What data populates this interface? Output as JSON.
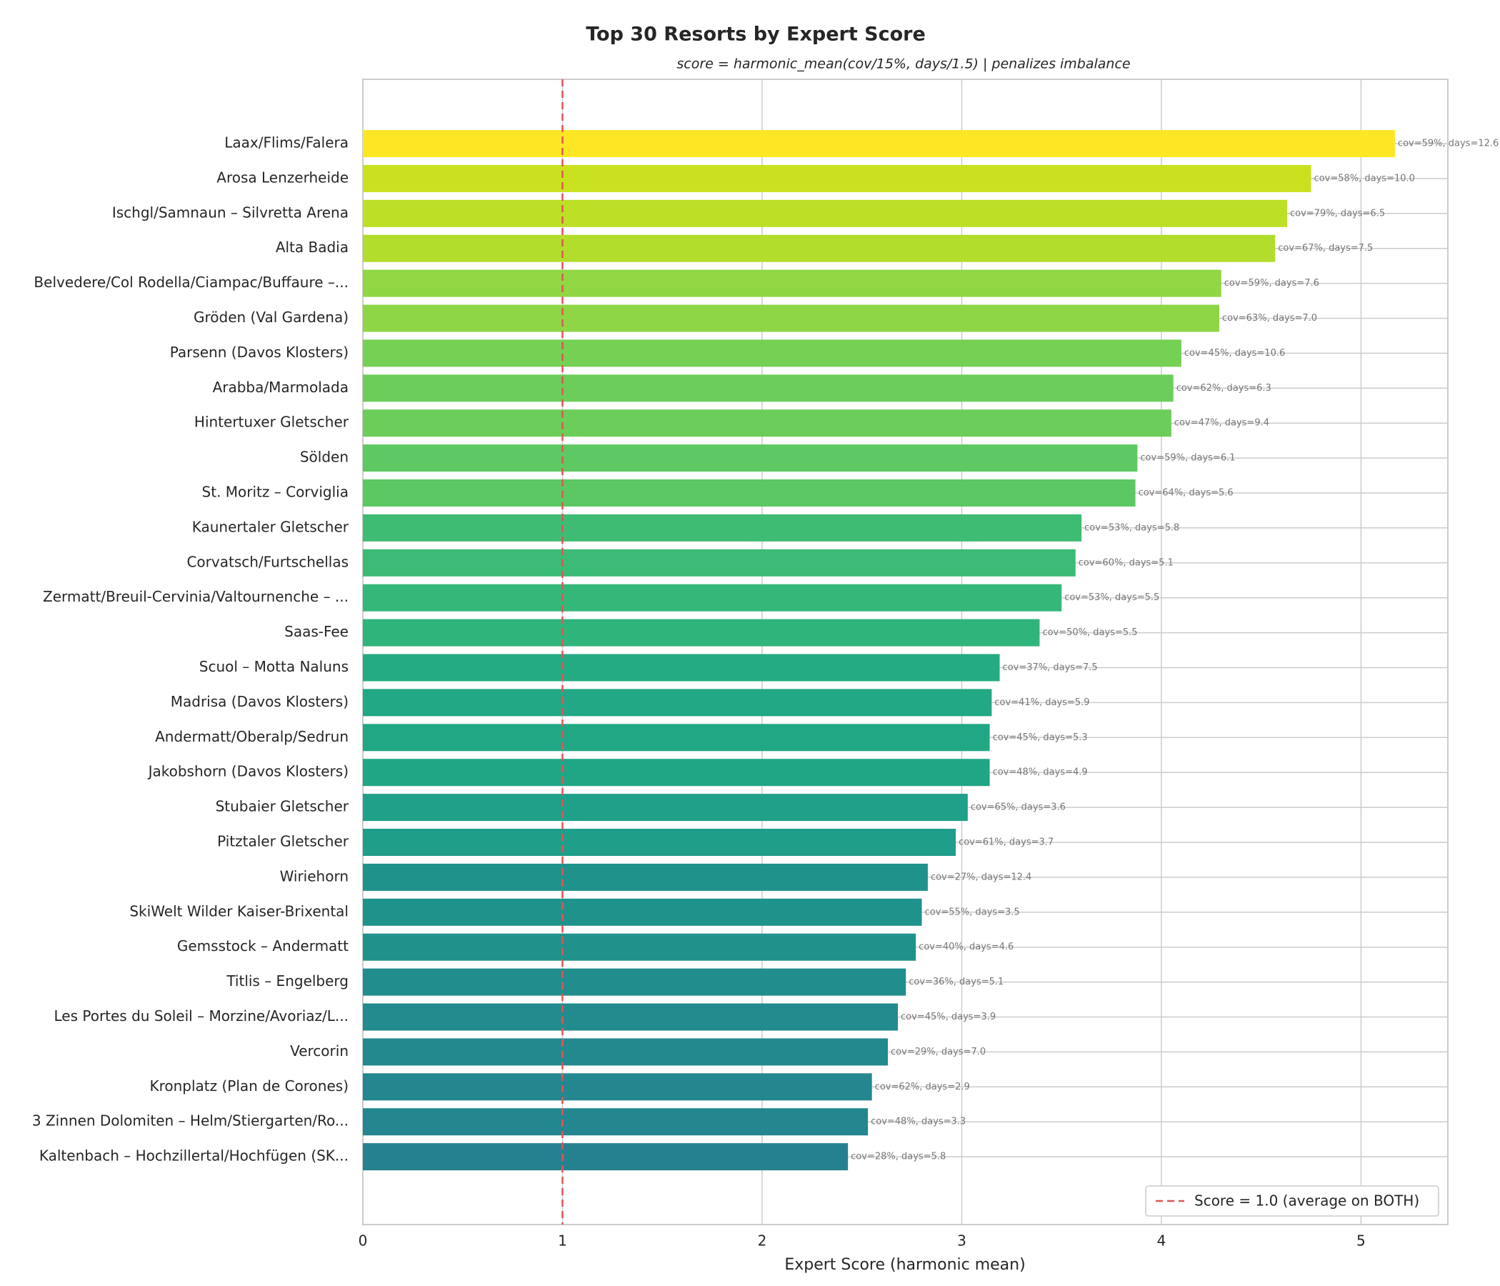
{
  "chart_data": {
    "type": "barh",
    "title": "Top 30 Resorts by Expert Score",
    "subtitle": "score = harmonic_mean(cov/15%, days/1.5) | penalizes imbalance",
    "x_label": "Expert Score (harmonic mean)",
    "categories": [
      "Laax/Flims/Falera",
      "Arosa Lenzerheide",
      "Ischgl/Samnaun – Silvretta Arena",
      "Alta Badia",
      "Belvedere/Col Rodella/Ciampac/Buffaure –...",
      "Gröden (Val Gardena)",
      "Parsenn (Davos Klosters)",
      "Arabba/Marmolada",
      "Hintertuxer Gletscher",
      "Sölden",
      "St. Moritz – Corviglia",
      "Kaunertaler Gletscher",
      "Corvatsch/Furtschellas",
      "Zermatt/Breuil-Cervinia/Valtournenche – ...",
      "Saas-Fee",
      "Scuol – Motta Naluns",
      "Madrisa (Davos Klosters)",
      "Andermatt/Oberalp/Sedrun",
      "Jakobshorn (Davos Klosters)",
      "Stubaier Gletscher",
      "Pitztaler Gletscher",
      "Wiriehorn",
      "SkiWelt Wilder Kaiser-Brixental",
      "Gemsstock – Andermatt",
      "Titlis – Engelberg",
      "Les Portes du Soleil – Morzine/Avoriaz/L...",
      "Vercorin",
      "Kronplatz (Plan de Corones)",
      "3 Zinnen Dolomiten – Helm/Stiergarten/Ro...",
      "Kaltenbach – Hochzillertal/Hochfügen (SK..."
    ],
    "values": [
      5.17,
      4.75,
      4.63,
      4.57,
      4.3,
      4.29,
      4.1,
      4.06,
      4.05,
      3.88,
      3.87,
      3.6,
      3.57,
      3.5,
      3.39,
      3.19,
      3.15,
      3.14,
      3.14,
      3.03,
      2.97,
      2.83,
      2.8,
      2.77,
      2.72,
      2.68,
      2.63,
      2.55,
      2.53,
      2.43
    ],
    "annotations": [
      "cov=59%, days=12.6",
      "cov=58%, days=10.0",
      "cov=79%, days=6.5",
      "cov=67%, days=7.5",
      "cov=59%, days=7.6",
      "cov=63%, days=7.0",
      "cov=45%, days=10.6",
      "cov=62%, days=6.3",
      "cov=47%, days=9.4",
      "cov=59%, days=6.1",
      "cov=64%, days=5.6",
      "cov=53%, days=5.8",
      "cov=60%, days=5.1",
      "cov=53%, days=5.5",
      "cov=50%, days=5.5",
      "cov=37%, days=7.5",
      "cov=41%, days=5.9",
      "cov=45%, days=5.3",
      "cov=48%, days=4.9",
      "cov=65%, days=3.6",
      "cov=61%, days=3.7",
      "cov=27%, days=12.4",
      "cov=55%, days=3.5",
      "cov=40%, days=4.6",
      "cov=36%, days=5.1",
      "cov=45%, days=3.9",
      "cov=29%, days=7.0",
      "cov=62%, days=2.9",
      "cov=48%, days=3.3",
      "cov=28%, days=5.8"
    ],
    "colors": [
      "#fde725",
      "#cae11f",
      "#bddf26",
      "#b2dd2c",
      "#90d743",
      "#8ed645",
      "#75d054",
      "#6ccd5a",
      "#6ccd5a",
      "#5ec962",
      "#5cc863",
      "#3fbc73",
      "#3bbb75",
      "#35b779",
      "#2fb47c",
      "#25ab82",
      "#22a884",
      "#22a785",
      "#21a685",
      "#1fa088",
      "#1f9e89",
      "#20928c",
      "#20928c",
      "#21918c",
      "#228d8d",
      "#228b8d",
      "#23898e",
      "#24868e",
      "#24868e",
      "#26818e"
    ],
    "xlim": [
      0,
      5.435
    ],
    "xticks": [
      0,
      1,
      2,
      3,
      4,
      5
    ],
    "grid": true,
    "reference_line": {
      "value": 1.0,
      "label": "Score = 1.0 (average on BOTH)",
      "color": "#e05555"
    },
    "legend_position": "lower right"
  }
}
